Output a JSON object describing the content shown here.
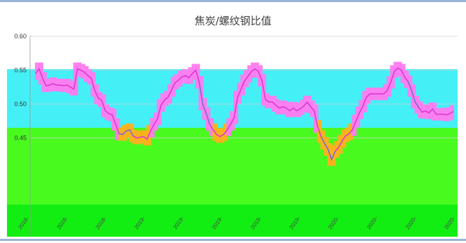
{
  "chart_data": {
    "type": "line",
    "title": "焦炭/螺纹钢比值",
    "xlabel": "",
    "ylabel": "",
    "ylim": [
      0.4,
      0.6
    ],
    "yticks": [
      "0.60",
      "0.55",
      "0.50",
      "0.45"
    ],
    "x_tick_labels": [
      "2018-",
      "2018-",
      "2018-",
      "2019-",
      "2019-",
      "2019-",
      "2019-",
      "2019-",
      "2020-",
      "2020-",
      "2020-",
      "2020-"
    ],
    "grid": true,
    "band_colors": {
      "cyan": "#44f0f6",
      "green": "#49fa1f",
      "dark_green": "#12ee12",
      "magenta": "#ff7bef",
      "orange": "#ffb01e",
      "line": "#d93ad0",
      "line_blue": "#4f7fd6"
    },
    "series": [
      {
        "x": [
          0,
          1,
          2,
          3,
          4,
          5,
          6,
          7,
          8,
          9,
          10,
          11,
          12,
          13,
          14,
          15,
          16,
          17,
          18,
          19,
          20,
          21,
          22,
          23,
          24,
          25,
          26,
          27,
          28,
          29,
          30,
          31,
          32,
          33,
          34,
          35,
          36,
          37,
          38,
          39,
          40,
          41,
          42,
          43,
          44,
          45,
          46,
          47,
          48,
          49,
          50,
          51,
          52,
          53,
          54,
          55,
          56,
          57,
          58,
          59,
          60,
          61,
          62,
          63,
          64,
          65,
          66,
          67,
          68,
          69,
          70,
          71,
          72,
          73,
          74,
          75,
          76,
          77,
          78,
          79,
          80,
          81,
          82,
          83,
          84,
          85,
          86,
          87,
          88,
          89,
          90,
          91,
          92,
          93,
          94,
          95,
          96,
          97,
          98,
          99,
          100,
          101,
          102,
          103,
          104,
          105,
          106,
          107,
          108,
          109,
          110,
          111,
          112,
          113,
          114,
          115,
          116,
          117,
          118,
          119,
          120
        ],
        "values": [
          0.545,
          0.552,
          0.538,
          0.527,
          0.528,
          0.53,
          0.528,
          0.528,
          0.527,
          0.528,
          0.525,
          0.522,
          0.552,
          0.55,
          0.547,
          0.542,
          0.538,
          0.52,
          0.509,
          0.505,
          0.49,
          0.486,
          0.484,
          0.47,
          0.456,
          0.455,
          0.46,
          0.462,
          0.453,
          0.45,
          0.451,
          0.452,
          0.448,
          0.46,
          0.47,
          0.478,
          0.498,
          0.506,
          0.51,
          0.52,
          0.531,
          0.535,
          0.54,
          0.542,
          0.539,
          0.545,
          0.55,
          0.532,
          0.5,
          0.486,
          0.47,
          0.462,
          0.455,
          0.452,
          0.455,
          0.462,
          0.47,
          0.48,
          0.51,
          0.522,
          0.534,
          0.541,
          0.548,
          0.552,
          0.548,
          0.535,
          0.507,
          0.503,
          0.503,
          0.498,
          0.494,
          0.496,
          0.494,
          0.49,
          0.494,
          0.49,
          0.493,
          0.497,
          0.503,
          0.496,
          0.49,
          0.467,
          0.452,
          0.442,
          0.433,
          0.418,
          0.43,
          0.436,
          0.445,
          0.453,
          0.456,
          0.462,
          0.475,
          0.487,
          0.497,
          0.51,
          0.515,
          0.515,
          0.515,
          0.515,
          0.515,
          0.52,
          0.532,
          0.548,
          0.553,
          0.55,
          0.54,
          0.533,
          0.52,
          0.503,
          0.495,
          0.488,
          0.49,
          0.487,
          0.493,
          0.485,
          0.485,
          0.485,
          0.484,
          0.486,
          0.489
        ]
      }
    ]
  }
}
